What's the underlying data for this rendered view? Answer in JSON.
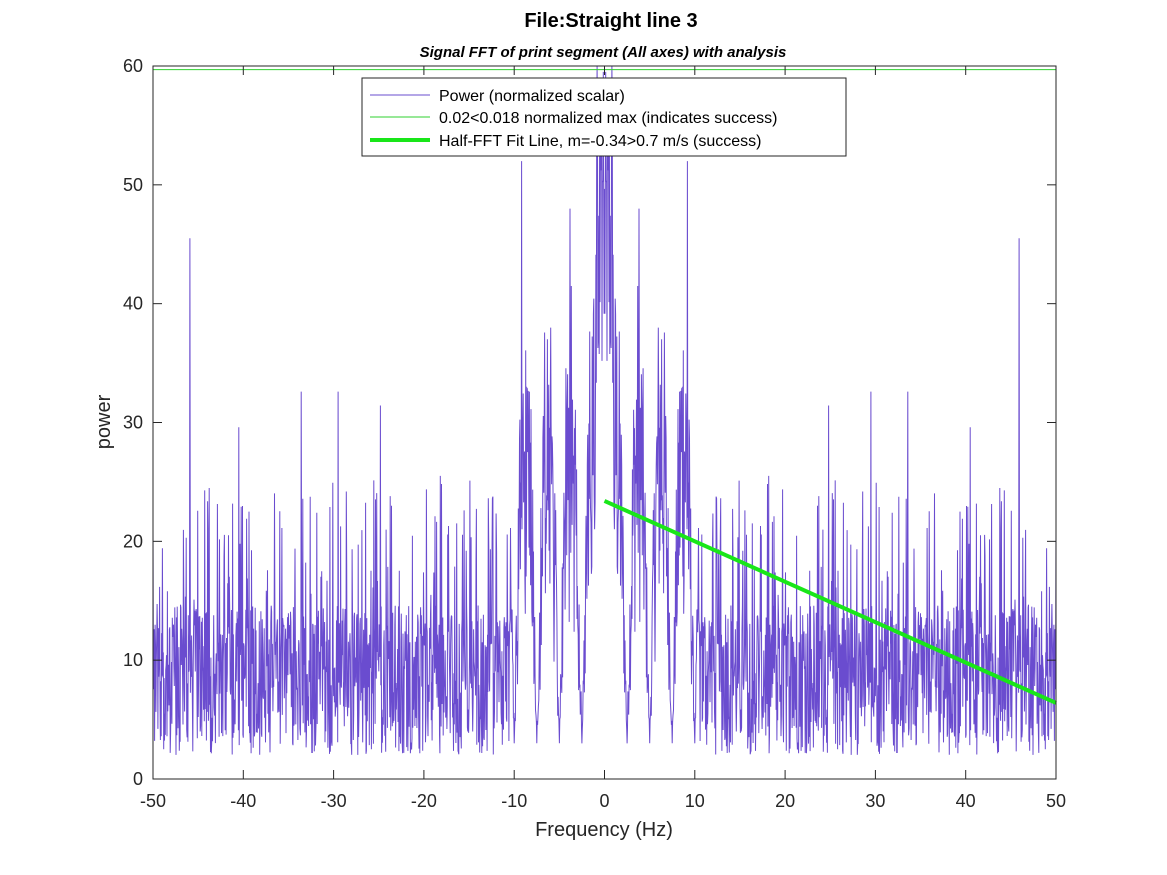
{
  "chart_data": {
    "type": "line",
    "title": "File:Straight line 3",
    "subtitle": "Signal FFT of print segment (All axes) with analysis",
    "xlabel": "Frequency (Hz)",
    "ylabel": "power",
    "xlim": [
      -50,
      50
    ],
    "ylim": [
      0,
      60
    ],
    "xticks": [
      -50,
      -40,
      -30,
      -20,
      -10,
      0,
      10,
      20,
      30,
      40,
      50
    ],
    "yticks": [
      0,
      10,
      20,
      30,
      40,
      50,
      60
    ],
    "grid": false,
    "legend_position": "top-center",
    "colors": {
      "power": "#6a4ccf",
      "threshold": "#2fd12f",
      "fit": "#19e619"
    },
    "series": [
      {
        "name": "Power (normalized scalar)",
        "kind": "noisy-spectrum",
        "color": "#6a4ccf",
        "peaks": [
          {
            "x": -45.9,
            "y": 45.5
          },
          {
            "x": 45.9,
            "y": 45.5
          },
          {
            "x": -9.2,
            "y": 52
          },
          {
            "x": 9.2,
            "y": 52
          },
          {
            "x": -0.8,
            "y": 60
          },
          {
            "x": 0.8,
            "y": 60
          },
          {
            "x": -6.3,
            "y": 37
          },
          {
            "x": 6.3,
            "y": 37
          },
          {
            "x": -3.8,
            "y": 48
          },
          {
            "x": 3.8,
            "y": 48
          },
          {
            "x": -33.6,
            "y": 32.6
          },
          {
            "x": 33.6,
            "y": 32.6
          },
          {
            "x": -40.5,
            "y": 29.6
          },
          {
            "x": 29.5,
            "y": 32.6
          }
        ]
      },
      {
        "name": "0.02<0.018 normalized max (indicates success)",
        "color": "#2fd12f",
        "x": [
          -50,
          50
        ],
        "y": [
          59.7,
          59.7
        ]
      },
      {
        "name": "Half-FFT Fit Line, m=-0.34>0.7 m/s (success)",
        "color": "#19e619",
        "x": [
          0,
          50
        ],
        "y": [
          23.4,
          6.4
        ]
      }
    ]
  }
}
